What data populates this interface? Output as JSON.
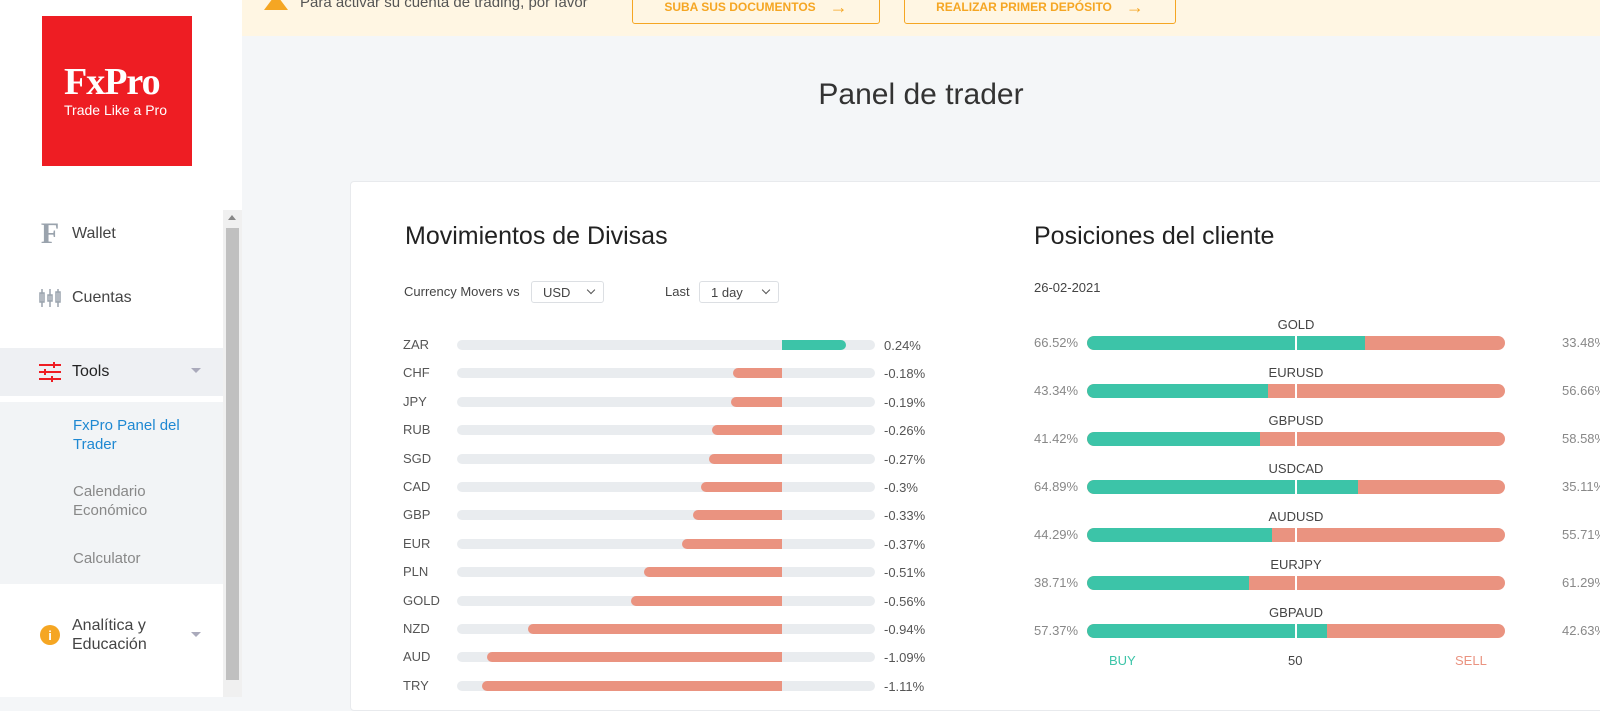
{
  "logo": {
    "brand": "FxPro",
    "tagline": "Trade Like a Pro"
  },
  "sidebar": {
    "items": [
      {
        "label": "Wallet",
        "icon": "wallet-f-icon"
      },
      {
        "label": "Cuentas",
        "icon": "candlestick-icon"
      },
      {
        "label": "Tools",
        "icon": "sliders-icon"
      },
      {
        "label": "Analítica y Educación",
        "icon": "info-icon"
      }
    ],
    "tools_sub": [
      "FxPro Panel del Trader",
      "Calendario Económico",
      "Calculator"
    ]
  },
  "banner": {
    "message": "Para activar su cuenta de trading, por favor",
    "upload_button": "SUBA SUS DOCUMENTOS",
    "deposit_button": "REALIZAR PRIMER DEPÓSITO"
  },
  "page_title": "Panel de trader",
  "movers": {
    "title": "Movimientos de Divisas",
    "vs_label": "Currency Movers vs",
    "vs_value": "USD",
    "last_label": "Last",
    "last_value": "1 day",
    "rows": [
      {
        "cur": "ZAR",
        "value": 0.24,
        "label": "0.24%"
      },
      {
        "cur": "CHF",
        "value": -0.18,
        "label": "-0.18%"
      },
      {
        "cur": "JPY",
        "value": -0.19,
        "label": "-0.19%"
      },
      {
        "cur": "RUB",
        "value": -0.26,
        "label": "-0.26%"
      },
      {
        "cur": "SGD",
        "value": -0.27,
        "label": "-0.27%"
      },
      {
        "cur": "CAD",
        "value": -0.3,
        "label": "-0.3%"
      },
      {
        "cur": "GBP",
        "value": -0.33,
        "label": "-0.33%"
      },
      {
        "cur": "EUR",
        "value": -0.37,
        "label": "-0.37%"
      },
      {
        "cur": "PLN",
        "value": -0.51,
        "label": "-0.51%"
      },
      {
        "cur": "GOLD",
        "value": -0.56,
        "label": "-0.56%"
      },
      {
        "cur": "NZD",
        "value": -0.94,
        "label": "-0.94%"
      },
      {
        "cur": "AUD",
        "value": -1.09,
        "label": "-1.09%"
      },
      {
        "cur": "TRY",
        "value": -1.11,
        "label": "-1.11%"
      }
    ]
  },
  "positions": {
    "title": "Posiciones del cliente",
    "date": "26-02-2021",
    "rows": [
      {
        "sym": "GOLD",
        "buy": 66.52,
        "buy_label": "66.52%",
        "sell_label": "33.48%"
      },
      {
        "sym": "EURUSD",
        "buy": 43.34,
        "buy_label": "43.34%",
        "sell_label": "56.66%"
      },
      {
        "sym": "GBPUSD",
        "buy": 41.42,
        "buy_label": "41.42%",
        "sell_label": "58.58%"
      },
      {
        "sym": "USDCAD",
        "buy": 64.89,
        "buy_label": "64.89%",
        "sell_label": "35.11%"
      },
      {
        "sym": "AUDUSD",
        "buy": 44.29,
        "buy_label": "44.29%",
        "sell_label": "55.71%"
      },
      {
        "sym": "EURJPY",
        "buy": 38.71,
        "buy_label": "38.71%",
        "sell_label": "61.29%"
      },
      {
        "sym": "GBPAUD",
        "buy": 57.37,
        "buy_label": "57.37%",
        "sell_label": "42.63%"
      }
    ],
    "buy_label": "BUY",
    "mid_label": "50",
    "sell_label": "SELL"
  },
  "colors": {
    "buy": "#3cc4a8",
    "sell": "#ea9380",
    "brand": "#ee1d23",
    "accent": "#1e88d2",
    "warning": "#f5a623"
  }
}
